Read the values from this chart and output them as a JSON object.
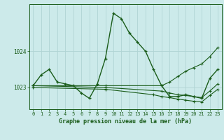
{
  "title": "Graphe pression niveau de la mer (hPa)",
  "background_color": "#cceaea",
  "line_color": "#1a5c1a",
  "grid_color": "#b0d4d4",
  "x_ticks": [
    0,
    1,
    2,
    3,
    4,
    5,
    6,
    7,
    8,
    9,
    10,
    11,
    12,
    13,
    14,
    15,
    16,
    17,
    18,
    19,
    20,
    21,
    22,
    23
  ],
  "yticks": [
    1023,
    1024
  ],
  "ylim": [
    1022.4,
    1025.3
  ],
  "xlim": [
    -0.5,
    23.5
  ],
  "series": [
    {
      "x": [
        0,
        1,
        2,
        3,
        4,
        5,
        6,
        7,
        8,
        9,
        10,
        11,
        12,
        13,
        14,
        15,
        16,
        17,
        18,
        19,
        20,
        21,
        22,
        23
      ],
      "y": [
        1023.05,
        1023.35,
        1023.5,
        1023.15,
        1023.1,
        1023.05,
        1022.85,
        1022.7,
        1023.1,
        1023.8,
        1025.05,
        1024.9,
        1024.5,
        1024.25,
        1024.0,
        1023.5,
        1023.05,
        1022.75,
        1022.75,
        1022.8,
        1022.75,
        1022.7,
        1023.25,
        1023.5
      ]
    },
    {
      "x": [
        0,
        9,
        16,
        17,
        18,
        19,
        20,
        21,
        22,
        23
      ],
      "y": [
        1023.05,
        1023.05,
        1023.05,
        1023.15,
        1023.3,
        1023.45,
        1023.55,
        1023.65,
        1023.85,
        1024.1
      ]
    },
    {
      "x": [
        0,
        9,
        16,
        17,
        18,
        19,
        20,
        21,
        22,
        23
      ],
      "y": [
        1023.05,
        1023.0,
        1022.9,
        1022.85,
        1022.8,
        1022.78,
        1022.75,
        1022.72,
        1022.9,
        1023.1
      ]
    },
    {
      "x": [
        0,
        9,
        15,
        16,
        17,
        18,
        19,
        20,
        21,
        22,
        23
      ],
      "y": [
        1023.0,
        1022.95,
        1022.8,
        1022.75,
        1022.72,
        1022.68,
        1022.65,
        1022.62,
        1022.6,
        1022.78,
        1022.95
      ]
    }
  ]
}
